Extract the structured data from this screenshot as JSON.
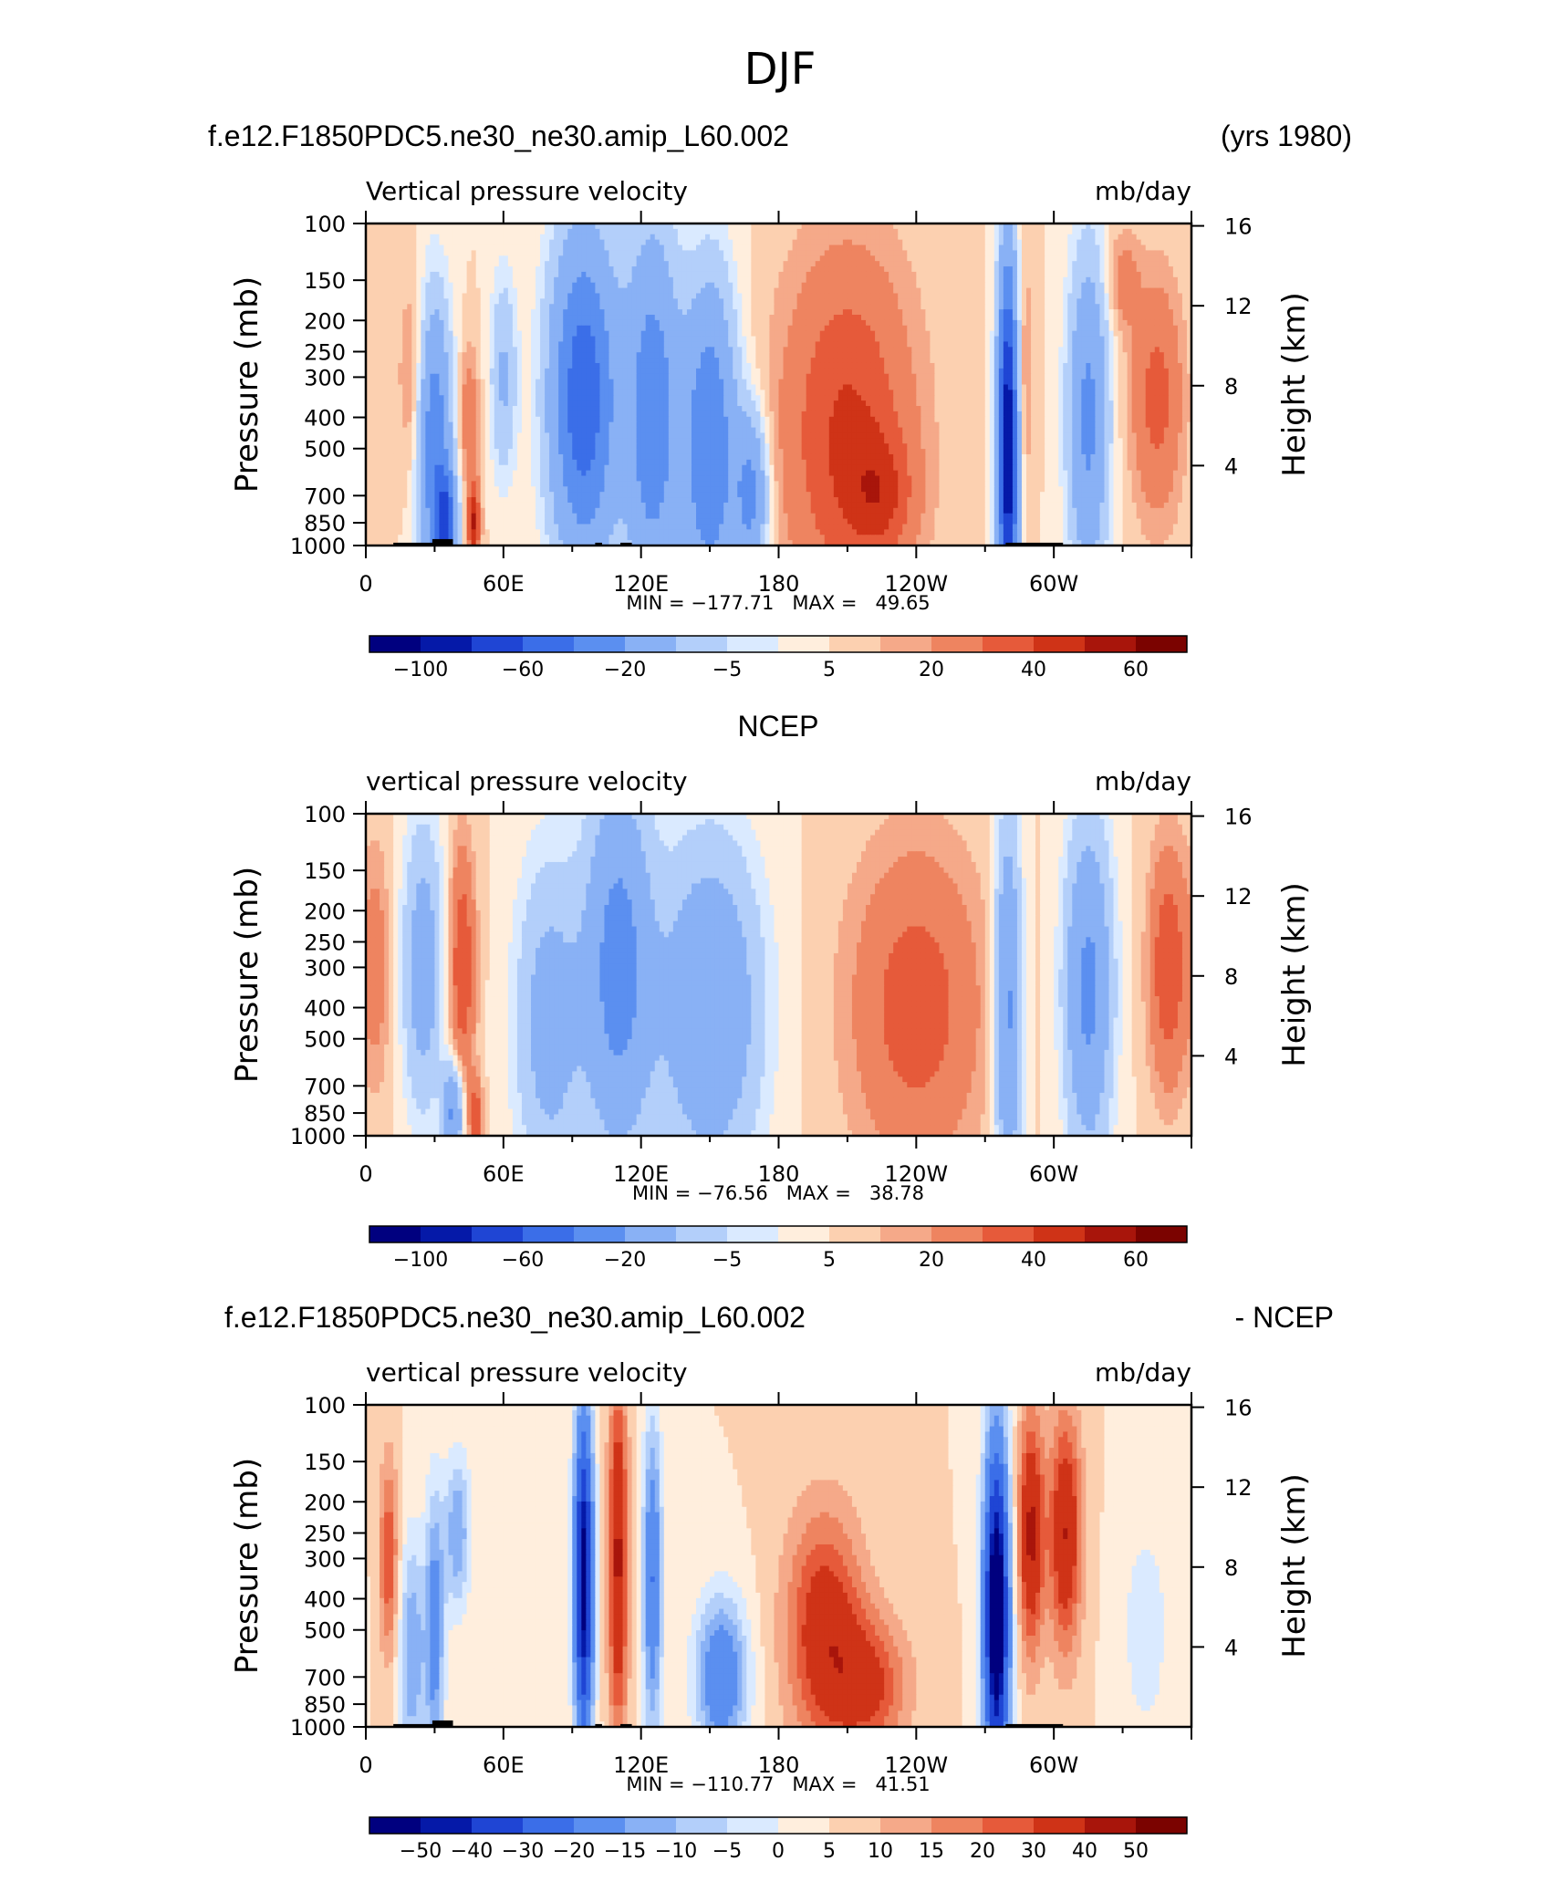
{
  "page_title": "DJF",
  "chart_data": [
    {
      "type": "heatmap",
      "left_title": "f.e12.F1850PDC5.ne30_ne30.amip_L60.002",
      "center_title": "",
      "right_title": "(yrs 1980)",
      "variable_label": "Vertical pressure velocity",
      "units_label": "mb/day",
      "ylabel": "Pressure (mb)",
      "right_ylabel": "Height (km)",
      "pressure_ticks": [
        "100",
        "150",
        "200",
        "250",
        "300",
        "400",
        "500",
        "700",
        "850",
        "1000"
      ],
      "height_ticks": [
        "16",
        "12",
        "8",
        "4"
      ],
      "x_ticks": [
        "0",
        "60E",
        "120E",
        "180",
        "120W",
        "60W"
      ],
      "minmax": "MIN = −177.71   MAX =   49.65",
      "colorbar_labels": [
        "−100",
        "−60",
        "−20",
        "−5",
        "5",
        "20",
        "40",
        "60"
      ],
      "topography": true,
      "features": [
        {
          "lon": 20,
          "p": 300,
          "sx": 4,
          "sy": 0.5,
          "a": 12
        },
        {
          "lon": 30,
          "p": 500,
          "sx": 5,
          "sy": 0.7,
          "a": -55
        },
        {
          "lon": 35,
          "p": 850,
          "sx": 3,
          "sy": 0.25,
          "a": -70
        },
        {
          "lon": 45,
          "p": 400,
          "sx": 3,
          "sy": 0.35,
          "a": 18
        },
        {
          "lon": 47,
          "p": 850,
          "sx": 2,
          "sy": 0.2,
          "a": 40
        },
        {
          "lon": 60,
          "p": 300,
          "sx": 4,
          "sy": 0.5,
          "a": -22
        },
        {
          "lon": 95,
          "p": 350,
          "sx": 10,
          "sy": 0.8,
          "a": -75
        },
        {
          "lon": 125,
          "p": 400,
          "sx": 8,
          "sy": 0.9,
          "a": -55
        },
        {
          "lon": 150,
          "p": 500,
          "sx": 8,
          "sy": 0.8,
          "a": -60
        },
        {
          "lon": 168,
          "p": 700,
          "sx": 5,
          "sy": 0.4,
          "a": -45
        },
        {
          "lon": 210,
          "p": 450,
          "sx": 20,
          "sy": 0.9,
          "a": 32
        },
        {
          "lon": 225,
          "p": 700,
          "sx": 10,
          "sy": 0.3,
          "a": 18
        },
        {
          "lon": 280,
          "p": 500,
          "sx": 3,
          "sy": 0.9,
          "a": -120
        },
        {
          "lon": 287,
          "p": 300,
          "sx": 3,
          "sy": 0.6,
          "a": 12
        },
        {
          "lon": 315,
          "p": 400,
          "sx": 6,
          "sy": 0.8,
          "a": -45
        },
        {
          "lon": 345,
          "p": 350,
          "sx": 8,
          "sy": 0.6,
          "a": 24
        },
        {
          "lon": 330,
          "p": 150,
          "sx": 5,
          "sy": 0.25,
          "a": 14
        }
      ]
    },
    {
      "type": "heatmap",
      "left_title": "",
      "center_title": "NCEP",
      "right_title": "",
      "variable_label": "vertical pressure velocity",
      "units_label": "mb/day",
      "ylabel": "Pressure (mb)",
      "right_ylabel": "Height (km)",
      "pressure_ticks": [
        "100",
        "150",
        "200",
        "250",
        "300",
        "400",
        "500",
        "700",
        "850",
        "1000"
      ],
      "height_ticks": [
        "16",
        "12",
        "8",
        "4"
      ],
      "x_ticks": [
        "0",
        "60E",
        "120E",
        "180",
        "120W",
        "60W"
      ],
      "minmax": "MIN = −76.56   MAX =   38.78",
      "colorbar_labels": [
        "−100",
        "−60",
        "−20",
        "−5",
        "5",
        "20",
        "40",
        "60"
      ],
      "topography": false,
      "features": [
        {
          "lon": 5,
          "p": 300,
          "sx": 4,
          "sy": 0.6,
          "a": 14
        },
        {
          "lon": 25,
          "p": 300,
          "sx": 6,
          "sy": 0.7,
          "a": -30
        },
        {
          "lon": 38,
          "p": 850,
          "sx": 3,
          "sy": 0.25,
          "a": -45
        },
        {
          "lon": 42,
          "p": 300,
          "sx": 4,
          "sy": 0.6,
          "a": 30
        },
        {
          "lon": 48,
          "p": 900,
          "sx": 2,
          "sy": 0.2,
          "a": 28
        },
        {
          "lon": 80,
          "p": 450,
          "sx": 10,
          "sy": 0.8,
          "a": -28
        },
        {
          "lon": 110,
          "p": 300,
          "sx": 10,
          "sy": 0.9,
          "a": -50
        },
        {
          "lon": 150,
          "p": 400,
          "sx": 15,
          "sy": 0.8,
          "a": -40
        },
        {
          "lon": 240,
          "p": 400,
          "sx": 20,
          "sy": 0.8,
          "a": 26
        },
        {
          "lon": 280,
          "p": 400,
          "sx": 4,
          "sy": 0.9,
          "a": -45
        },
        {
          "lon": 315,
          "p": 350,
          "sx": 7,
          "sy": 0.8,
          "a": -45
        },
        {
          "lon": 350,
          "p": 300,
          "sx": 6,
          "sy": 0.6,
          "a": 30
        }
      ]
    },
    {
      "type": "heatmap",
      "left_title": "f.e12.F1850PDC5.ne30_ne30.amip_L60.002",
      "center_title": "",
      "right_title": "- NCEP",
      "variable_label": "vertical pressure velocity",
      "units_label": "mb/day",
      "ylabel": "Pressure (mb)",
      "right_ylabel": "Height (km)",
      "pressure_ticks": [
        "100",
        "150",
        "200",
        "250",
        "300",
        "400",
        "500",
        "700",
        "850",
        "1000"
      ],
      "height_ticks": [
        "16",
        "12",
        "8",
        "4"
      ],
      "x_ticks": [
        "0",
        "60E",
        "120E",
        "180",
        "120W",
        "60W"
      ],
      "minmax": "MIN = −110.77   MAX =   41.51",
      "colorbar_labels": [
        "−50",
        "−40",
        "−30",
        "−20",
        "−15",
        "−10",
        "−5",
        "0",
        "5",
        "10",
        "15",
        "20",
        "30",
        "40",
        "50"
      ],
      "topography": true,
      "features": [
        {
          "lon": 10,
          "p": 300,
          "sx": 3,
          "sy": 0.5,
          "a": 20
        },
        {
          "lon": 20,
          "p": 600,
          "sx": 4,
          "sy": 0.6,
          "a": -20
        },
        {
          "lon": 30,
          "p": 500,
          "sx": 3,
          "sy": 0.7,
          "a": -25
        },
        {
          "lon": 40,
          "p": 250,
          "sx": 4,
          "sy": 0.4,
          "a": -20
        },
        {
          "lon": 95,
          "p": 350,
          "sx": 3,
          "sy": 0.9,
          "a": -60
        },
        {
          "lon": 110,
          "p": 300,
          "sx": 3,
          "sy": 0.9,
          "a": 32
        },
        {
          "lon": 125,
          "p": 350,
          "sx": 3,
          "sy": 0.8,
          "a": -30
        },
        {
          "lon": 155,
          "p": 700,
          "sx": 8,
          "sy": 0.4,
          "a": -30
        },
        {
          "lon": 200,
          "p": 500,
          "sx": 12,
          "sy": 0.6,
          "a": 26
        },
        {
          "lon": 220,
          "p": 750,
          "sx": 12,
          "sy": 0.35,
          "a": 20
        },
        {
          "lon": 275,
          "p": 450,
          "sx": 4,
          "sy": 0.9,
          "a": -70
        },
        {
          "lon": 290,
          "p": 250,
          "sx": 4,
          "sy": 0.6,
          "a": 32
        },
        {
          "lon": 305,
          "p": 250,
          "sx": 5,
          "sy": 0.6,
          "a": 30
        },
        {
          "lon": 340,
          "p": 500,
          "sx": 8,
          "sy": 0.6,
          "a": -8
        }
      ]
    }
  ],
  "colors": {
    "panel_diverging": [
      "#00007f",
      "#0519a8",
      "#1f45d4",
      "#3b6ee8",
      "#5b8ff0",
      "#89b1f5",
      "#b3cffa",
      "#daeaff",
      "#ffeedd",
      "#fcd0b0",
      "#f5a989",
      "#ee8460",
      "#e65a3a",
      "#cf3317",
      "#a8150b",
      "#7b0300"
    ],
    "diff_diverging": [
      "#00007f",
      "#0519a8",
      "#1f45d4",
      "#3b6ee8",
      "#5b8ff0",
      "#89b1f5",
      "#b3cffa",
      "#daeaff",
      "#ffeedd",
      "#fcd0b0",
      "#f5a989",
      "#ee8460",
      "#e65a3a",
      "#cf3317",
      "#a8150b",
      "#7b0300"
    ]
  }
}
